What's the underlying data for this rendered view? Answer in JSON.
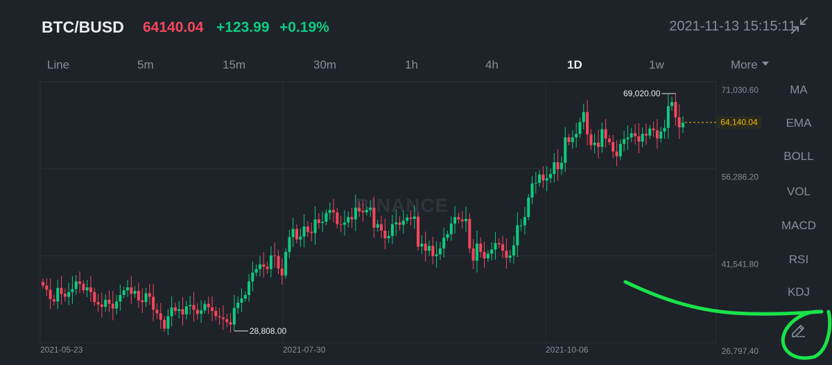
{
  "header": {
    "pair": "BTC/BUSD",
    "price": "64140.04",
    "change": "+123.99",
    "change_pct": "+0.19%",
    "timestamp": "2021-11-13 15:15:11",
    "shrink_icon": "collapse-arrows-icon"
  },
  "tabs": [
    {
      "label": "Line"
    },
    {
      "label": "5m"
    },
    {
      "label": "15m"
    },
    {
      "label": "30m"
    },
    {
      "label": "1h"
    },
    {
      "label": "4h"
    },
    {
      "label": "1D",
      "active": true
    },
    {
      "label": "1w"
    },
    {
      "label": "More"
    }
  ],
  "side_menu": [
    "MA",
    "EMA",
    "BOLL",
    "VOL",
    "MACD",
    "RSI",
    "KDJ"
  ],
  "draw_tool_icon": "pencil-icon",
  "colors": {
    "up": "#0ecb81",
    "down": "#f6465d",
    "background": "#1e2329",
    "grid": "#2b3139",
    "text_muted": "#848e9c",
    "text_bright": "#eaecef",
    "current_price": "#f0b90b",
    "annotation_green": "#19e34a"
  },
  "watermark": "BINANCE",
  "chart_data": {
    "type": "candlestick",
    "y_ticks": [
      "71,030.60",
      "56,286.20",
      "41,541.80",
      "26,797.40"
    ],
    "x_ticks": [
      "2021-05-23",
      "2021-07-30",
      "2021-10-06"
    ],
    "ylim": [
      26797.4,
      71030.6
    ],
    "current_price_label": "64,140.04",
    "current_price": 64140.04,
    "high_label": "69,020.00",
    "high": 69020.0,
    "low_label": "28,808.00",
    "low": 28808.0,
    "closes": [
      36500,
      35800,
      34200,
      33800,
      36100,
      35100,
      34600,
      35400,
      35900,
      37200,
      36800,
      35700,
      36200,
      35400,
      33700,
      33300,
      32900,
      34100,
      33400,
      32600,
      33800,
      34900,
      35700,
      36200,
      35100,
      35600,
      34000,
      33700,
      35200,
      34600,
      32400,
      31800,
      30700,
      29200,
      31300,
      32800,
      32200,
      32500,
      31600,
      33000,
      33200,
      32400,
      31700,
      32300,
      33400,
      32800,
      32200,
      31300,
      31100,
      30800,
      30300,
      29900,
      32700,
      33600,
      34300,
      34900,
      37200,
      38700,
      39300,
      40100,
      39700,
      39300,
      41600,
      41500,
      39400,
      38200,
      42200,
      44700,
      46100,
      44300,
      44800,
      46500,
      45600,
      45400,
      47700,
      47100,
      47300,
      48800,
      49300,
      48900,
      46900,
      46800,
      47200,
      48100,
      47700,
      49700,
      49100,
      48900,
      49300,
      49700,
      46300,
      46900,
      45800,
      44500,
      44900,
      46900,
      47200,
      46800,
      47500,
      48000,
      47800,
      48200,
      43100,
      43600,
      42400,
      43200,
      41500,
      41800,
      42800,
      44600,
      45200,
      47000,
      48100,
      47700,
      47400,
      47800,
      42800,
      40700,
      43600,
      42200,
      41100,
      41900,
      42600,
      43700,
      43500,
      42400,
      41200,
      41600,
      43300,
      46700,
      46700,
      48100,
      51400,
      53800,
      53900,
      55300,
      54300,
      54700,
      55400,
      57400,
      56200,
      57300,
      61600,
      60800,
      61600,
      62200,
      64200,
      65900,
      62100,
      60300,
      60700,
      60000,
      63000,
      61400,
      60800,
      59200,
      58400,
      60500,
      61300,
      61600,
      62300,
      61800,
      60900,
      62200,
      61900,
      63100,
      62800,
      61400,
      62600,
      63200,
      66900,
      67600,
      65000,
      63300,
      64100
    ]
  }
}
